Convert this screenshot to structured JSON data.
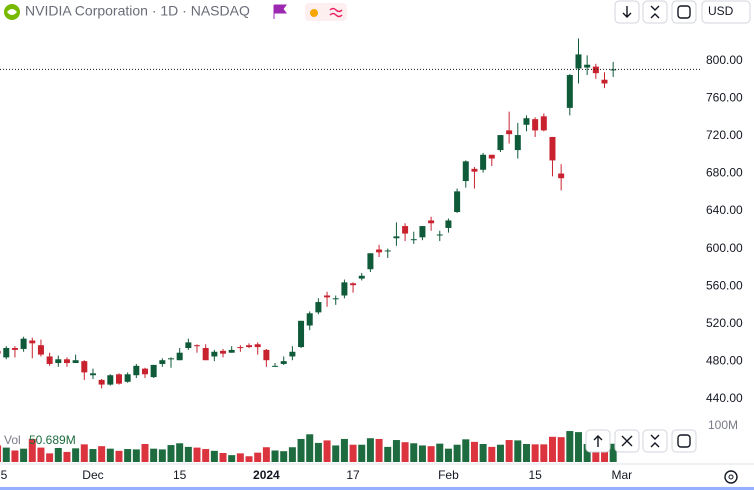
{
  "chart_data": {
    "type": "candlestick",
    "symbol_title": "NVIDIA Corporation · 1D · NASDAQ",
    "currency": "USD",
    "volume_title": "Vol",
    "volume_last": "50.689M",
    "up_color": "#0f5a38",
    "down_color": "#c9222f",
    "volume_up_color": "#1d6b3e",
    "volume_down_color": "#dc343e",
    "categories": [
      "5",
      null,
      null,
      null,
      null,
      null,
      null,
      null,
      null,
      null,
      null,
      "Dec",
      null,
      null,
      null,
      null,
      null,
      null,
      null,
      null,
      null,
      "15",
      null,
      null,
      null,
      null,
      null,
      null,
      null,
      null,
      null,
      "2024",
      null,
      null,
      null,
      null,
      null,
      null,
      null,
      null,
      null,
      "17",
      null,
      null,
      null,
      null,
      null,
      null,
      null,
      null,
      null,
      null,
      "Feb",
      null,
      null,
      null,
      null,
      null,
      null,
      null,
      null,
      null,
      "15",
      null,
      null,
      null,
      null,
      null,
      null,
      null,
      null,
      null,
      "Mar"
    ],
    "open": [
      491,
      484,
      494,
      493,
      502,
      497,
      485,
      478,
      482,
      478,
      480,
      465,
      460,
      455,
      466,
      458,
      465,
      472,
      463,
      477,
      483,
      481,
      494,
      497,
      494,
      485,
      491,
      489,
      495,
      497,
      498,
      492,
      474,
      477,
      485,
      495,
      518,
      532,
      550,
      547,
      550,
      563,
      568,
      578,
      599,
      597,
      611,
      624,
      609,
      612,
      630,
      614,
      622,
      639,
      672,
      685,
      684,
      700,
      705,
      726,
      705,
      732,
      738,
      741,
      719,
      680,
      750,
      792,
      793,
      794,
      780,
      790,
      null
    ],
    "high": [
      494,
      496,
      496,
      506,
      505,
      503,
      489,
      486,
      484,
      487,
      481,
      472,
      461,
      466,
      467,
      468,
      477,
      473,
      476,
      483,
      484,
      494,
      504,
      498,
      498,
      492,
      493,
      496,
      497,
      499,
      500,
      493,
      478,
      485,
      496,
      523,
      533,
      547,
      554,
      550,
      567,
      564,
      574,
      595,
      604,
      600,
      628,
      627,
      618,
      624,
      634,
      619,
      632,
      664,
      694,
      687,
      702,
      700,
      721,
      746,
      734,
      742,
      740,
      744,
      719,
      690,
      786,
      824,
      806,
      797,
      788,
      799,
      null
    ],
    "low": [
      483,
      482,
      484,
      490,
      483,
      485,
      475,
      474,
      474,
      478,
      460,
      461,
      451,
      454,
      455,
      457,
      462,
      462,
      462,
      474,
      473,
      481,
      492,
      489,
      481,
      480,
      484,
      489,
      490,
      494,
      487,
      474,
      474,
      476,
      481,
      494,
      513,
      530,
      538,
      540,
      547,
      553,
      566,
      575,
      591,
      590,
      603,
      608,
      605,
      609,
      619,
      608,
      617,
      638,
      665,
      664,
      681,
      688,
      703,
      712,
      696,
      725,
      719,
      725,
      677,
      662,
      742,
      776,
      785,
      781,
      771,
      783,
      null
    ],
    "close": [
      488,
      494,
      492,
      504,
      499,
      487,
      477,
      482,
      478,
      481,
      468,
      467,
      455,
      465,
      456,
      466,
      475,
      466,
      476,
      481,
      483,
      489,
      500,
      496,
      481,
      490,
      488,
      492,
      494,
      495,
      495,
      481,
      475,
      480,
      490,
      523,
      531,
      543,
      548,
      547,
      564,
      561,
      571,
      595,
      596,
      598,
      613,
      616,
      610,
      624,
      627,
      615,
      630,
      661,
      693,
      682,
      700,
      696,
      721,
      722,
      721,
      739,
      726,
      726,
      694,
      675,
      785,
      807,
      796,
      787,
      776,
      791,
      null
    ],
    "volume": [
      46,
      40,
      32,
      37,
      64,
      40,
      24,
      39,
      28,
      38,
      49,
      36,
      44,
      37,
      31,
      36,
      35,
      50,
      37,
      35,
      47,
      52,
      42,
      40,
      36,
      31,
      25,
      19,
      24,
      16,
      26,
      41,
      32,
      30,
      41,
      64,
      77,
      53,
      60,
      46,
      64,
      48,
      48,
      66,
      64,
      42,
      61,
      55,
      52,
      46,
      44,
      51,
      37,
      48,
      63,
      56,
      50,
      42,
      48,
      61,
      60,
      50,
      49,
      49,
      70,
      69,
      86,
      83,
      50,
      40,
      39,
      50.689,
      null
    ],
    "last_price": 791,
    "ylim": [
      413,
      865
    ],
    "yticks": [
      {
        "value": 440,
        "label": "440.00"
      },
      {
        "value": 480,
        "label": "480.00"
      },
      {
        "value": 520,
        "label": "520.00"
      },
      {
        "value": 560,
        "label": "560.00"
      },
      {
        "value": 600,
        "label": "600.00"
      },
      {
        "value": 640,
        "label": "640.00"
      },
      {
        "value": 680,
        "label": "680.00"
      },
      {
        "value": 720,
        "label": "720.00"
      },
      {
        "value": 760,
        "label": "760.00"
      },
      {
        "value": 800,
        "label": "800.00"
      }
    ],
    "y2lim": [
      0,
      100
    ],
    "y2ticks": [
      {
        "value": 100,
        "label": "100M"
      }
    ]
  }
}
